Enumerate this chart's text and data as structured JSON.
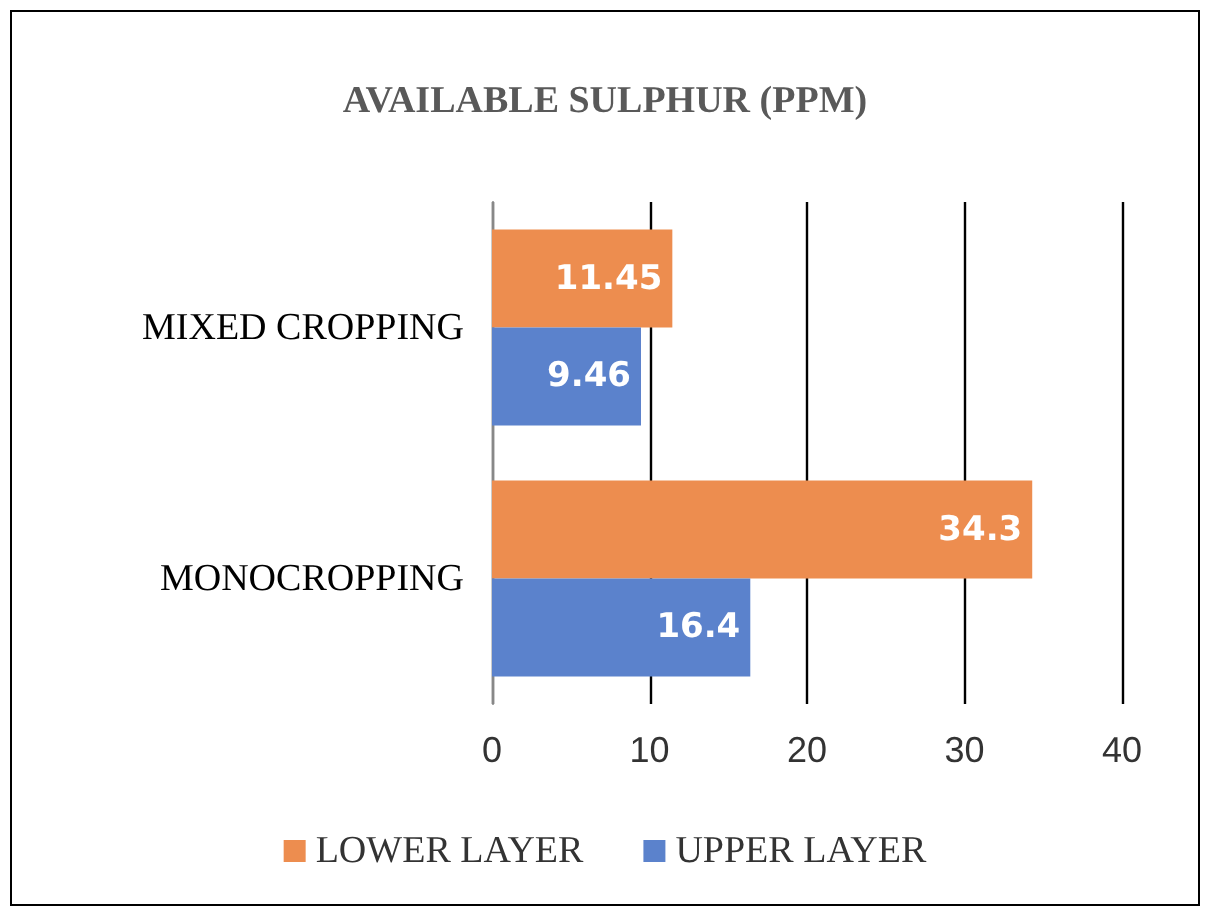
{
  "chart_data": {
    "type": "bar",
    "orientation": "horizontal",
    "title": "AVAILABLE SULPHUR (PPM)",
    "categories": [
      "MIXED CROPPING",
      "MONOCROPPING"
    ],
    "series": [
      {
        "name": "LOWER LAYER",
        "color": "#ed8d4f",
        "values": [
          11.45,
          34.3
        ]
      },
      {
        "name": "UPPER LAYER",
        "color": "#5b82cc",
        "values": [
          9.46,
          16.4
        ]
      }
    ],
    "xlim": [
      0,
      40
    ],
    "xticks": [
      0,
      10,
      20,
      30,
      40
    ],
    "grid": "x",
    "legend": "bottom",
    "data_labels": true
  }
}
